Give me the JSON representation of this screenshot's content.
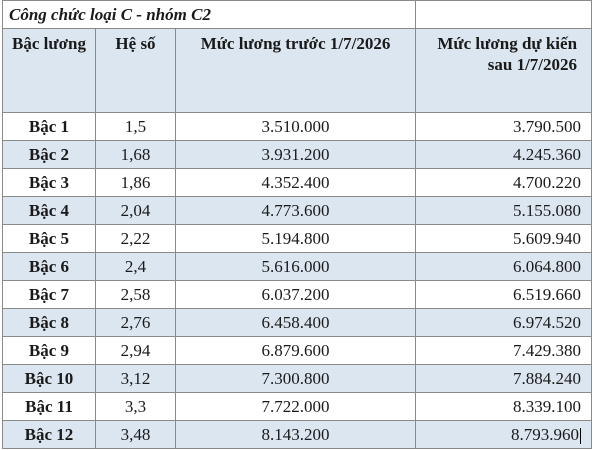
{
  "title": "Công chức loại C - nhóm C2",
  "headers": {
    "level": "Bậc lương",
    "coefficient": "Hệ số",
    "before": "Mức lương trước 1/7/2026",
    "after": "Mức lương dự kiến sau 1/7/2026"
  },
  "rows": [
    {
      "level": "Bậc 1",
      "coefficient": "1,5",
      "before": "3.510.000",
      "after": "3.790.500"
    },
    {
      "level": "Bậc 2",
      "coefficient": "1,68",
      "before": "3.931.200",
      "after": "4.245.360"
    },
    {
      "level": "Bậc 3",
      "coefficient": "1,86",
      "before": "4.352.400",
      "after": "4.700.220"
    },
    {
      "level": "Bậc 4",
      "coefficient": "2,04",
      "before": "4.773.600",
      "after": "5.155.080"
    },
    {
      "level": "Bậc 5",
      "coefficient": "2,22",
      "before": "5.194.800",
      "after": "5.609.940"
    },
    {
      "level": "Bậc 6",
      "coefficient": "2,4",
      "before": "5.616.000",
      "after": "6.064.800"
    },
    {
      "level": "Bậc 7",
      "coefficient": "2,58",
      "before": "6.037.200",
      "after": "6.519.660"
    },
    {
      "level": "Bậc 8",
      "coefficient": "2,76",
      "before": "6.458.400",
      "after": "6.974.520"
    },
    {
      "level": "Bậc 9",
      "coefficient": "2,94",
      "before": "6.879.600",
      "after": "7.429.380"
    },
    {
      "level": "Bậc 10",
      "coefficient": "3,12",
      "before": "7.300.800",
      "after": "7.884.240"
    },
    {
      "level": "Bậc 11",
      "coefficient": "3,3",
      "before": "7.722.000",
      "after": "8.339.100"
    },
    {
      "level": "Bậc 12",
      "coefficient": "3,48",
      "before": "8.143.200",
      "after": "8.793.960"
    }
  ],
  "colors": {
    "header_bg": "#dce6f0",
    "stripe_bg": "#dce6f0",
    "border": "#8a8a8a"
  }
}
